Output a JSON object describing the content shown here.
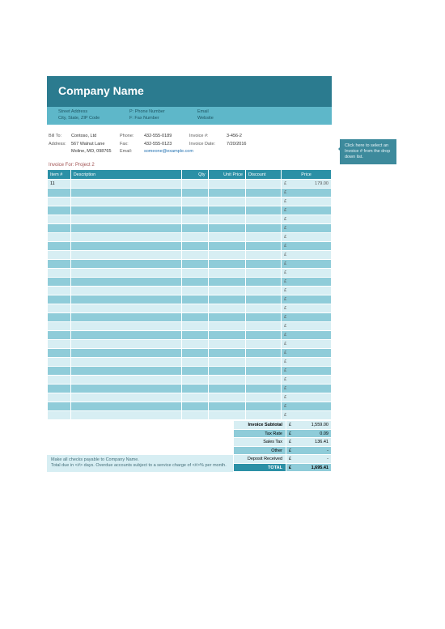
{
  "header": {
    "company_name": "Company Name",
    "street": "Street Address",
    "city_state_zip": "City, State, ZIP Code",
    "phone_label": "P:  Phone Number",
    "fax_label": "F:  Fax Number",
    "email_label": "Email",
    "website_label": "Website"
  },
  "billto": {
    "label_billto": "Bill To:",
    "label_address": "Address:",
    "name": "Contoso, Ltd",
    "line1": "567 Walnut Lane",
    "line2": "Moline, MO, 098765",
    "label_phone": "Phone:",
    "label_fax": "Fax:",
    "label_email": "Email:",
    "phone": "432-555-0189",
    "fax": "432-555-0123",
    "email": "someone@example.com",
    "label_invoice_no": "Invoice #:",
    "label_invoice_date": "Invoice Date:",
    "invoice_no": "3-456-2",
    "invoice_date": "7/20/2016"
  },
  "invoice_for": "Invoice For: Project 2",
  "table": {
    "headers": {
      "item": "Item #",
      "description": "Description",
      "qty": "Qty",
      "unit_price": "Unit Price",
      "discount": "Discount",
      "price": "Price"
    },
    "first_row": {
      "item": "11",
      "currency": "£",
      "price": "179.00"
    },
    "currency": "£"
  },
  "totals": {
    "subtotal_label": "Invoice Subtotal",
    "subtotal": "1,559.00",
    "taxrate_label": "Tax Rate",
    "taxrate": "0.09",
    "salestax_label": "Sales Tax",
    "salestax": "136.41",
    "other_label": "Other",
    "other": "-",
    "deposit_label": "Deposit Received",
    "deposit": "-",
    "total_label": "TOTAL",
    "total": "1,695.41",
    "currency": "£"
  },
  "notes": {
    "line1": "Make all checks payable to Company Name.",
    "line2": "Total due in <#> days. Overdue accounts subject to a service charge of <#>% per month."
  },
  "tooltip": "Click here to select an Invoice # from the drop down list.",
  "style": {
    "header_bg": "#2b7b8f",
    "subheader_bg": "#5eb7c9",
    "th_bg": "#2b90a6",
    "band_light": "#d7eef3",
    "band_dark": "#8fccd9",
    "tooltip_bg": "#3d8a9c"
  }
}
